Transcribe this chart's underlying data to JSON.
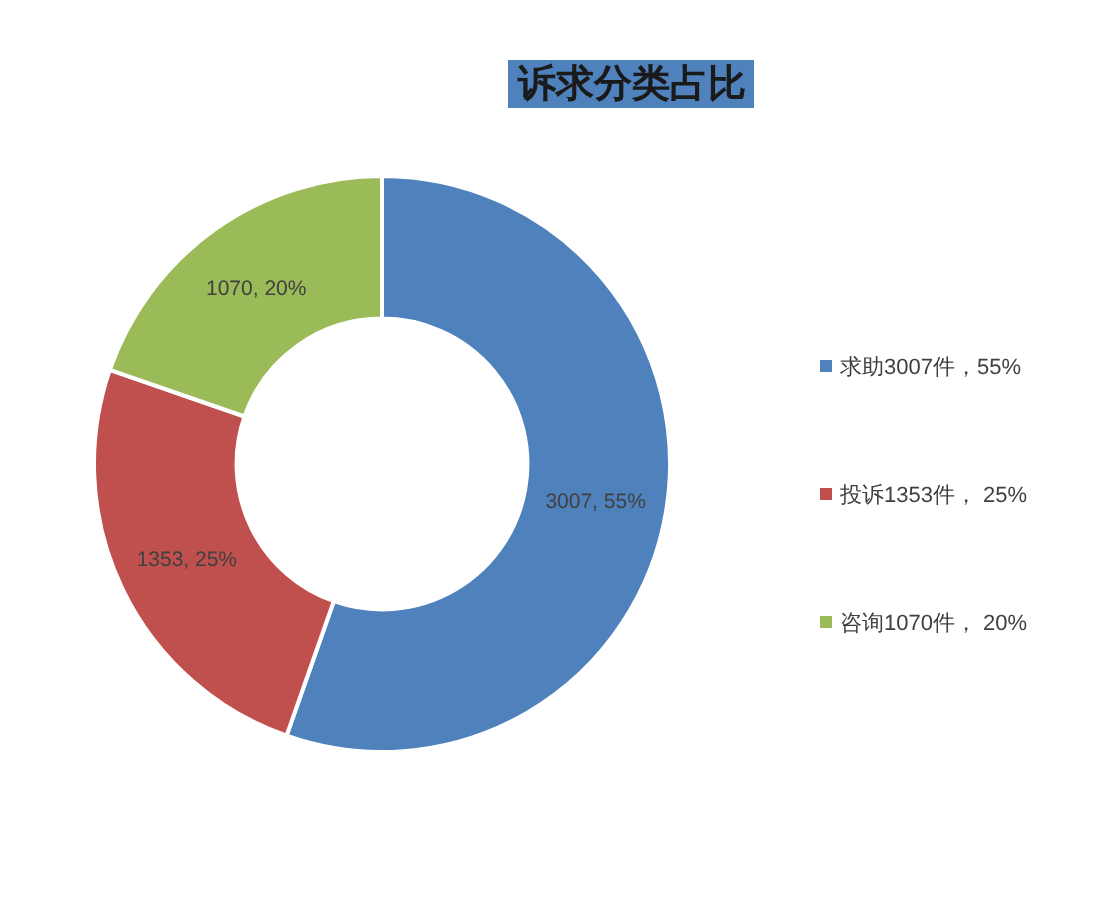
{
  "chart_data": {
    "type": "donut",
    "title": "诉求分类占比",
    "categories": [
      "求助3007件，55%",
      "投诉1353件， 25%",
      "咨询1070件， 20%"
    ],
    "values": [
      3007,
      1353,
      1070
    ],
    "colors": [
      "#4f81bd",
      "#c0504d",
      "#9bbb59"
    ],
    "value_labels": [
      "3007, 55%",
      "1353, 25%",
      "1070, 20%"
    ],
    "legend": "right"
  }
}
